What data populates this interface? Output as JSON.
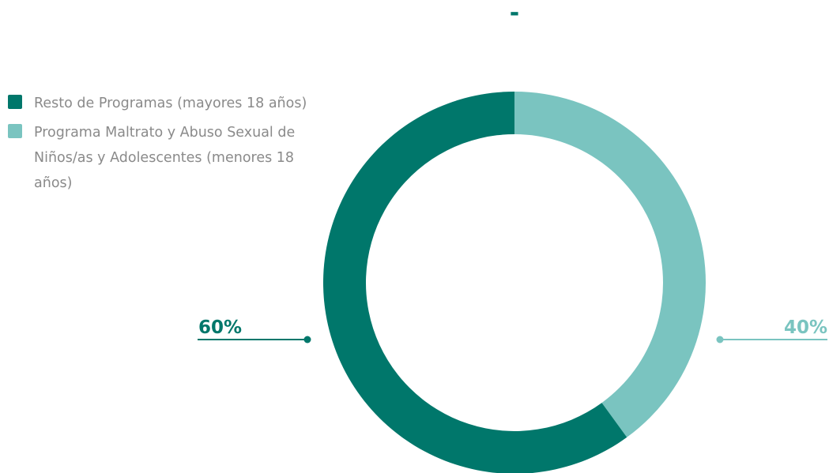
{
  "colors": {
    "dark_teal": "#00776b",
    "light_teal": "#7ac4c0",
    "title": "#00776b",
    "legend_text": "#8a8a8a"
  },
  "chart_data": {
    "type": "donut",
    "title": "-",
    "legend_position": "top-left",
    "series": [
      {
        "name": "Programa Maltrato y Abuso Sexual de Niños/as y Adolescentes (menores 18 años)",
        "value": 40,
        "label": "40%",
        "color": "#7ac4c0"
      },
      {
        "name": "Resto de Programas (mayores 18 años)",
        "value": 60,
        "label": "60%",
        "color": "#00776b"
      }
    ]
  },
  "legend": {
    "items": [
      {
        "label": "Resto de Programas (mayores 18 años)",
        "color": "#00776b"
      },
      {
        "label": "Programa Maltrato y Abuso Sexual de Niños/as y Adolescentes (menores 18 años)",
        "color": "#7ac4c0"
      }
    ]
  }
}
